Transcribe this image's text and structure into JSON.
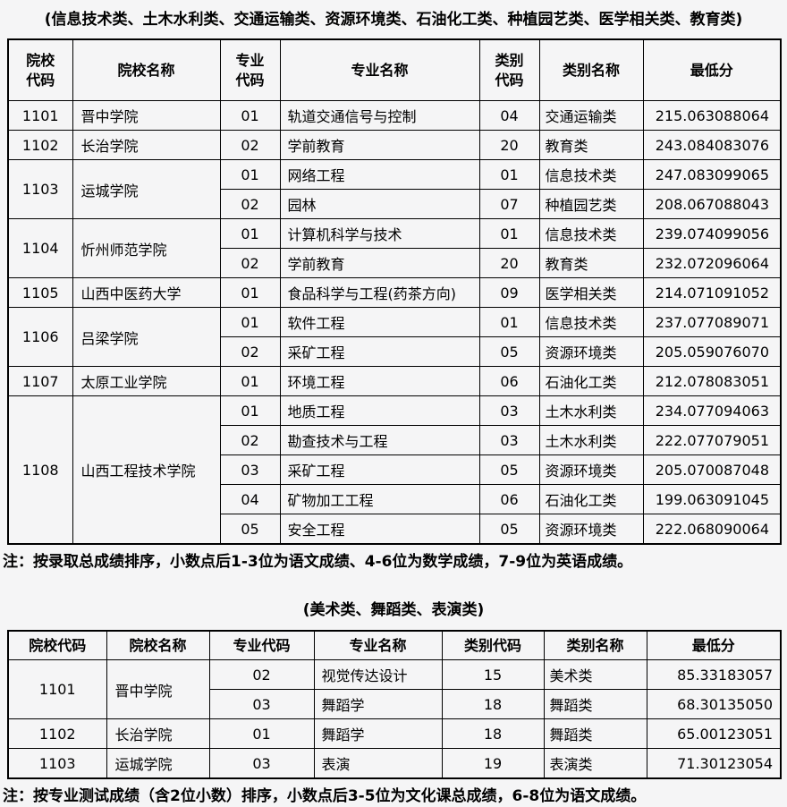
{
  "page": {
    "background_color": "#f5f5f6",
    "border_color": "#000000",
    "text_color": "#000000"
  },
  "table1": {
    "title": "(信息技术类、土木水利类、交通运输类、资源环境类、石油化工类、种植园艺类、医学相关类、教育类)",
    "headers": [
      "院校\n代码",
      "院校名称",
      "专业\n代码",
      "专业名称",
      "类别\n代码",
      "类别名称",
      "最低分"
    ],
    "colleges": [
      {
        "code": "1101",
        "name": "晋中学院",
        "majors": [
          {
            "major_code": "01",
            "major_name": "轨道交通信号与控制",
            "cat_code": "04",
            "cat_name": "交通运输类",
            "min_score": "215.063088064"
          }
        ]
      },
      {
        "code": "1102",
        "name": "长治学院",
        "majors": [
          {
            "major_code": "02",
            "major_name": "学前教育",
            "cat_code": "20",
            "cat_name": "教育类",
            "min_score": "243.084083076"
          }
        ]
      },
      {
        "code": "1103",
        "name": "运城学院",
        "majors": [
          {
            "major_code": "01",
            "major_name": "网络工程",
            "cat_code": "01",
            "cat_name": "信息技术类",
            "min_score": "247.083099065"
          },
          {
            "major_code": "02",
            "major_name": "园林",
            "cat_code": "07",
            "cat_name": "种植园艺类",
            "min_score": "208.067088043"
          }
        ]
      },
      {
        "code": "1104",
        "name": "忻州师范学院",
        "majors": [
          {
            "major_code": "01",
            "major_name": "计算机科学与技术",
            "cat_code": "01",
            "cat_name": "信息技术类",
            "min_score": "239.074099056"
          },
          {
            "major_code": "02",
            "major_name": "学前教育",
            "cat_code": "20",
            "cat_name": "教育类",
            "min_score": "232.072096064"
          }
        ]
      },
      {
        "code": "1105",
        "name": "山西中医药大学",
        "majors": [
          {
            "major_code": "01",
            "major_name": "食品科学与工程(药茶方向)",
            "cat_code": "09",
            "cat_name": "医学相关类",
            "min_score": "214.071091052"
          }
        ]
      },
      {
        "code": "1106",
        "name": "吕梁学院",
        "majors": [
          {
            "major_code": "01",
            "major_name": "软件工程",
            "cat_code": "01",
            "cat_name": "信息技术类",
            "min_score": "237.077089071"
          },
          {
            "major_code": "02",
            "major_name": "采矿工程",
            "cat_code": "05",
            "cat_name": "资源环境类",
            "min_score": "205.059076070"
          }
        ]
      },
      {
        "code": "1107",
        "name": "太原工业学院",
        "majors": [
          {
            "major_code": "01",
            "major_name": "环境工程",
            "cat_code": "06",
            "cat_name": "石油化工类",
            "min_score": "212.078083051"
          }
        ]
      },
      {
        "code": "1108",
        "name": "山西工程技术学院",
        "majors": [
          {
            "major_code": "01",
            "major_name": "地质工程",
            "cat_code": "03",
            "cat_name": "土木水利类",
            "min_score": "234.077094063"
          },
          {
            "major_code": "02",
            "major_name": "勘查技术与工程",
            "cat_code": "03",
            "cat_name": "土木水利类",
            "min_score": "222.077079051"
          },
          {
            "major_code": "03",
            "major_name": "采矿工程",
            "cat_code": "05",
            "cat_name": "资源环境类",
            "min_score": "205.070087048"
          },
          {
            "major_code": "04",
            "major_name": "矿物加工工程",
            "cat_code": "06",
            "cat_name": "石油化工类",
            "min_score": "199.063091045"
          },
          {
            "major_code": "05",
            "major_name": "安全工程",
            "cat_code": "05",
            "cat_name": "资源环境类",
            "min_score": "222.068090064"
          }
        ]
      }
    ],
    "note": "注：按录取总成绩排序，小数点后1-3位为语文成绩、4-6位为数学成绩，7-9位为英语成绩。"
  },
  "table2": {
    "title": "(美术类、舞蹈类、表演类)",
    "headers": [
      "院校代码",
      "院校名称",
      "专业代码",
      "专业名称",
      "类别代码",
      "类别名称",
      "最低分"
    ],
    "colleges": [
      {
        "code": "1101",
        "name": "晋中学院",
        "majors": [
          {
            "major_code": "02",
            "major_name": "视觉传达设计",
            "cat_code": "15",
            "cat_name": "美术类",
            "min_score": "85.33183057"
          },
          {
            "major_code": "03",
            "major_name": "舞蹈学",
            "cat_code": "18",
            "cat_name": "舞蹈类",
            "min_score": "68.30135050"
          }
        ]
      },
      {
        "code": "1102",
        "name": "长治学院",
        "majors": [
          {
            "major_code": "01",
            "major_name": "舞蹈学",
            "cat_code": "18",
            "cat_name": "舞蹈类",
            "min_score": "65.00123051"
          }
        ]
      },
      {
        "code": "1103",
        "name": "运城学院",
        "majors": [
          {
            "major_code": "03",
            "major_name": "表演",
            "cat_code": "19",
            "cat_name": "表演类",
            "min_score": "71.30123054"
          }
        ]
      }
    ],
    "note": "注：按专业测试成绩（含2位小数）排序，小数点后3-5位为文化课总成绩，6-8位为语文成绩。"
  }
}
